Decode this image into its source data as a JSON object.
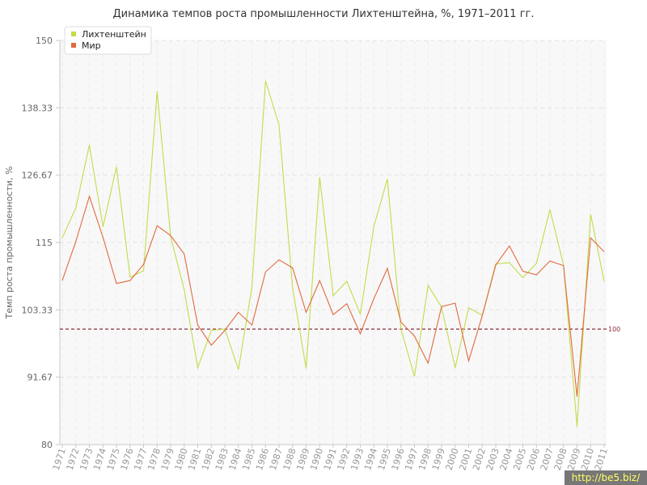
{
  "chart_data": {
    "type": "line",
    "title": "Динамика темпов роста промышленности Лихтенштейна, %, 1971–2011 гг.",
    "xlabel": "",
    "ylabel": "Темп роста промышленности, %",
    "ylim": [
      80,
      150
    ],
    "yticks": [
      "80",
      "91.67",
      "103.33",
      "115",
      "126.67",
      "138.33",
      "150"
    ],
    "x": [
      "1971",
      "1972",
      "1973",
      "1974",
      "1975",
      "1976",
      "1977",
      "1978",
      "1979",
      "1980",
      "1981",
      "1982",
      "1983",
      "1984",
      "1985",
      "1986",
      "1987",
      "1988",
      "1989",
      "1990",
      "1991",
      "1992",
      "1993",
      "1994",
      "1995",
      "1996",
      "1997",
      "1998",
      "1999",
      "2000",
      "2001",
      "2002",
      "2003",
      "2004",
      "2005",
      "2006",
      "2007",
      "2008",
      "2009",
      "2010",
      "2011"
    ],
    "series": [
      {
        "name": "Лихтенштейн",
        "color": "#c3dc4a",
        "values": [
          115.8,
          121.0,
          131.9,
          117.7,
          128.1,
          109.0,
          110.1,
          141.2,
          116.0,
          106.8,
          93.3,
          99.8,
          100.0,
          93.0,
          107.3,
          143.0,
          135.4,
          107.1,
          93.2,
          126.3,
          105.8,
          108.3,
          102.6,
          117.8,
          126.0,
          100.0,
          91.8,
          107.6,
          103.8,
          93.3,
          103.7,
          102.4,
          111.3,
          111.5,
          108.9,
          111.4,
          120.7,
          111.1,
          83.1,
          119.9,
          108.3
        ],
        "marker": "square"
      },
      {
        "name": "Мир",
        "color": "#e06a3f",
        "values": [
          108.4,
          115.2,
          123.0,
          115.9,
          107.9,
          108.4,
          111.2,
          117.9,
          116.2,
          113.0,
          100.7,
          97.2,
          99.8,
          102.9,
          100.7,
          109.9,
          112.0,
          110.6,
          102.9,
          108.4,
          102.5,
          104.4,
          99.2,
          105.3,
          110.5,
          101.2,
          98.8,
          94.1,
          103.9,
          104.5,
          94.5,
          102.3,
          111.1,
          114.4,
          110.0,
          109.4,
          111.8,
          111.0,
          88.3,
          115.8,
          113.4
        ],
        "marker": "square"
      }
    ],
    "reference_line": {
      "value": 100,
      "label": "100",
      "color": "#8b2e3c"
    },
    "grid": true,
    "legend": "top-left"
  },
  "watermark": "http://be5.biz/"
}
